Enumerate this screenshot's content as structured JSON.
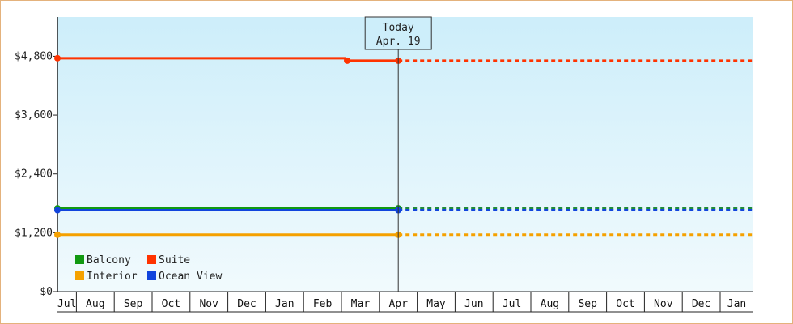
{
  "chart_data": {
    "type": "line",
    "title": "",
    "xlabel": "",
    "ylabel": "",
    "ylim": [
      0,
      5600
    ],
    "yticks": [
      0,
      1200,
      2400,
      3600,
      4800
    ],
    "ytick_labels": [
      "$0",
      "$1,200",
      "$2,400",
      "$3,600",
      "$4,800"
    ],
    "x_months": [
      "Jul",
      "Aug",
      "Sep",
      "Oct",
      "Nov",
      "Dec",
      "Jan",
      "Feb",
      "Mar",
      "Apr",
      "May",
      "Jun",
      "Jul",
      "Aug",
      "Sep",
      "Oct",
      "Nov",
      "Dec",
      "Jan"
    ],
    "today": {
      "line1": "Today",
      "line2": "Apr. 19",
      "month_pos": 9.0
    },
    "projection_end": 18.4,
    "grid": false,
    "legend_position": "bottom-left",
    "series": [
      {
        "name": "Balcony",
        "color": "#119911",
        "dash_color": "#1f8a3a",
        "points": [
          [
            0,
            1700
          ],
          [
            9.0,
            1700
          ]
        ],
        "projection": 1700
      },
      {
        "name": "Suite",
        "color": "#ff3300",
        "dash_color": "#ff3300",
        "points": [
          [
            0,
            4760
          ],
          [
            7.6,
            4760
          ],
          [
            7.65,
            4710
          ],
          [
            9.0,
            4710
          ]
        ],
        "projection": 4710
      },
      {
        "name": "Interior",
        "color": "#f5a100",
        "dash_color": "#f5a100",
        "points": [
          [
            0,
            1160
          ],
          [
            9.0,
            1160
          ]
        ],
        "projection": 1160
      },
      {
        "name": "Ocean View",
        "color": "#1144dd",
        "dash_color": "#1144dd",
        "points": [
          [
            0,
            1660
          ],
          [
            9.0,
            1660
          ]
        ],
        "projection": 1660
      }
    ],
    "legend_order": [
      "Balcony",
      "Suite",
      "Interior",
      "Ocean View"
    ]
  }
}
